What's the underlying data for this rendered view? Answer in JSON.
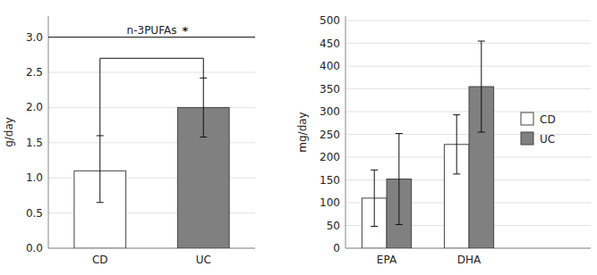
{
  "chart_data": [
    {
      "type": "bar",
      "categories": [
        "CD",
        "UC"
      ],
      "values": [
        1.1,
        2.0
      ],
      "errors_up": [
        0.5,
        0.42
      ],
      "errors_down": [
        0.45,
        0.42
      ],
      "colors": [
        "#ffffff",
        "#808080"
      ],
      "y_label": "g/day",
      "ylim": [
        0,
        3.3
      ],
      "yticks": [
        {
          "value": 0,
          "label": "0.0"
        },
        0.5,
        {
          "value": 1.0,
          "label": "1.0"
        },
        1.5,
        {
          "value": 2.0,
          "label": "2.0"
        },
        2.5,
        {
          "value": 3.0,
          "label": "3.0"
        }
      ],
      "grid": true,
      "reference_line": 3.0,
      "significance_bracket": 2.7,
      "annotations": [
        "n-3PUFAs",
        "*"
      ]
    },
    {
      "type": "bar",
      "categories": [
        "EPA",
        "DHA"
      ],
      "series": [
        {
          "name": "CD",
          "color": "#ffffff",
          "values": [
            110,
            228
          ],
          "errors_up": [
            62,
            65
          ],
          "errors_down": [
            62,
            65
          ]
        },
        {
          "name": "UC",
          "color": "#808080",
          "values": [
            152,
            355
          ],
          "errors_up": [
            100,
            100
          ],
          "errors_down": [
            100,
            100
          ]
        }
      ],
      "y_label": "mg/day",
      "ylim": [
        0,
        510
      ],
      "yticks": [
        0,
        50,
        100,
        150,
        200,
        250,
        300,
        350,
        400,
        450,
        500
      ],
      "grid": true,
      "legend": "right"
    }
  ]
}
